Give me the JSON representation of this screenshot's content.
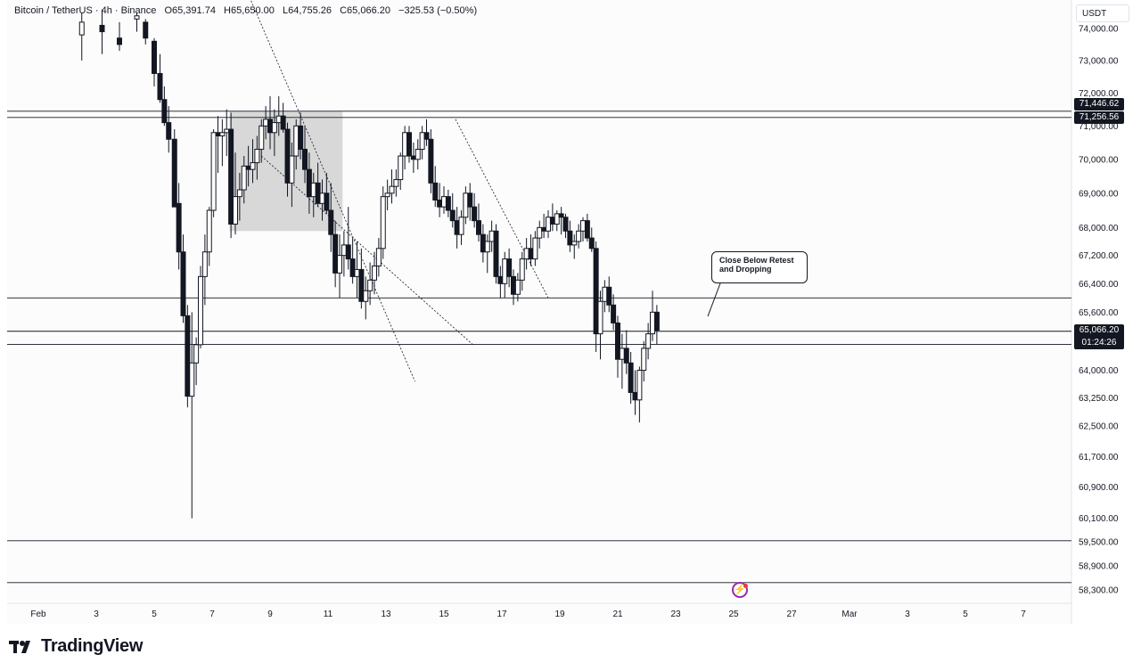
{
  "header": {
    "symbol": "Bitcoin / TetherUS · 4h · Binance",
    "open": "O65,391.74",
    "high": "H65,650.00",
    "low": "L64,755.26",
    "close": "C65,066.20",
    "change": "−325.53 (−0.50%)"
  },
  "currency": "USDT",
  "price_tags": {
    "upper": "71,446.62",
    "lower": "71,256.56",
    "current": "65,066.20",
    "countdown": "01:24:26"
  },
  "annotation": {
    "line1": "Close Below Retest",
    "line2": "and Dropping"
  },
  "branding": "TradingView",
  "colors": {
    "candle": "#131722",
    "hline": "#131722",
    "box_fill": "#d1d1d1",
    "tag_bg": "#131722",
    "bolt": "#9c27b0"
  },
  "chart_data": {
    "type": "candlestick",
    "title": "Bitcoin / TetherUS · 4h · Binance",
    "y_axis": {
      "scale": "log",
      "ticks": [
        "74,000.00",
        "73,000.00",
        "72,000.00",
        "71,000.00",
        "70,000.00",
        "69,000.00",
        "68,000.00",
        "67,200.00",
        "66,400.00",
        "65,600.00",
        "64,000.00",
        "63,250.00",
        "62,500.00",
        "61,700.00",
        "60,900.00",
        "60,100.00",
        "59,500.00",
        "58,900.00",
        "58,300.00"
      ],
      "tick_values": [
        74000,
        73000,
        72000,
        71000,
        70000,
        69000,
        68000,
        67200,
        66400,
        65600,
        64000,
        63250,
        62500,
        61700,
        60900,
        60100,
        59500,
        58900,
        58300
      ]
    },
    "x_axis": {
      "ticks": [
        "Feb",
        "3",
        "5",
        "7",
        "9",
        "11",
        "13",
        "15",
        "17",
        "19",
        "21",
        "23",
        "25",
        "27",
        "Mar",
        "3",
        "5",
        "7"
      ],
      "tick_positions_day": [
        1,
        3,
        5,
        7,
        9,
        11,
        13,
        15,
        17,
        19,
        21,
        23,
        25,
        27,
        29,
        31,
        33,
        35
      ]
    },
    "horizontal_levels": [
      71446.62,
      71256.56,
      66000,
      65070,
      64710,
      59530,
      58480
    ],
    "range_box": {
      "day_start": 7.6,
      "day_end": 11.5,
      "high": 71450,
      "low": 67900
    },
    "trendlines": [
      {
        "from": [
          8.1,
          75400
        ],
        "to": [
          14.0,
          63700
        ]
      },
      {
        "from": [
          8.7,
          70100
        ],
        "to": [
          16.0,
          64700
        ]
      },
      {
        "from": [
          15.4,
          71200
        ],
        "to": [
          18.6,
          66000
        ]
      }
    ],
    "candles_day_ohlc": [
      [
        2.5,
        73800,
        74500,
        73000,
        74200
      ],
      [
        3.2,
        74100,
        74600,
        73200,
        73900
      ],
      [
        3.8,
        73700,
        74200,
        73300,
        73500
      ],
      [
        4.4,
        74300,
        74500,
        73900,
        74400
      ],
      [
        4.7,
        74200,
        74300,
        73500,
        73700
      ],
      [
        5.0,
        73600,
        73700,
        72200,
        72600
      ],
      [
        5.2,
        72600,
        73200,
        71700,
        71800
      ],
      [
        5.35,
        71800,
        72200,
        71000,
        71100
      ],
      [
        5.5,
        71100,
        71600,
        70200,
        70600
      ],
      [
        5.7,
        70600,
        70900,
        68600,
        68600
      ],
      [
        5.85,
        68700,
        69300,
        66800,
        67300
      ],
      [
        6.0,
        67300,
        67800,
        65300,
        65500
      ],
      [
        6.15,
        65500,
        65800,
        63000,
        63300
      ],
      [
        6.3,
        63300,
        65600,
        60100,
        64200
      ],
      [
        6.45,
        64200,
        64900,
        63600,
        64700
      ],
      [
        6.6,
        64700,
        66900,
        64600,
        66600
      ],
      [
        6.75,
        66600,
        67800,
        65800,
        67300
      ],
      [
        6.9,
        67300,
        68600,
        66900,
        68500
      ],
      [
        7.05,
        68500,
        70900,
        68300,
        70800
      ],
      [
        7.2,
        70800,
        71300,
        69600,
        70700
      ],
      [
        7.35,
        70700,
        71200,
        69800,
        70800
      ],
      [
        7.5,
        70800,
        71500,
        70100,
        70900
      ],
      [
        7.65,
        70900,
        71400,
        67700,
        68100
      ],
      [
        7.8,
        68100,
        70200,
        67800,
        68900
      ],
      [
        7.95,
        68900,
        69600,
        68200,
        69100
      ],
      [
        8.1,
        69100,
        70100,
        68700,
        69800
      ],
      [
        8.25,
        69800,
        70400,
        69200,
        69700
      ],
      [
        8.4,
        69700,
        70600,
        69300,
        69900
      ],
      [
        8.55,
        69900,
        70700,
        69400,
        70300
      ],
      [
        8.7,
        70300,
        71200,
        69900,
        71000
      ],
      [
        8.85,
        71000,
        71600,
        70600,
        71200
      ],
      [
        9.0,
        71200,
        71900,
        70300,
        70800
      ],
      [
        9.15,
        70800,
        71500,
        70100,
        71100
      ],
      [
        9.3,
        71100,
        71900,
        70700,
        71300
      ],
      [
        9.45,
        71300,
        71700,
        70800,
        70900
      ],
      [
        9.6,
        70900,
        71100,
        68900,
        69300
      ],
      [
        9.75,
        69300,
        70500,
        68600,
        70100
      ],
      [
        9.9,
        70100,
        71200,
        69700,
        71000
      ],
      [
        10.05,
        71000,
        71400,
        70000,
        70300
      ],
      [
        10.2,
        70300,
        71000,
        69300,
        69700
      ],
      [
        10.35,
        69700,
        70200,
        68400,
        68900
      ],
      [
        10.5,
        68900,
        69600,
        68300,
        69300
      ],
      [
        10.65,
        69300,
        69900,
        68600,
        68700
      ],
      [
        10.8,
        68700,
        69400,
        68200,
        69000
      ],
      [
        10.95,
        69000,
        69600,
        68400,
        68500
      ],
      [
        11.1,
        68500,
        69300,
        67300,
        67800
      ],
      [
        11.25,
        67800,
        68200,
        66300,
        66700
      ],
      [
        11.4,
        66700,
        67800,
        66000,
        67200
      ],
      [
        11.55,
        67200,
        67900,
        66600,
        67500
      ],
      [
        11.7,
        67500,
        68600,
        66800,
        67100
      ],
      [
        11.85,
        67100,
        67700,
        66400,
        66600
      ],
      [
        12.0,
        66600,
        67600,
        66000,
        66800
      ],
      [
        12.15,
        66800,
        67400,
        65700,
        65900
      ],
      [
        12.3,
        65900,
        66600,
        65400,
        66200
      ],
      [
        12.45,
        66200,
        67000,
        65800,
        66500
      ],
      [
        12.6,
        66500,
        67300,
        66100,
        66900
      ],
      [
        12.75,
        66900,
        67700,
        66600,
        67400
      ],
      [
        12.9,
        67400,
        69200,
        67100,
        68900
      ],
      [
        13.05,
        68900,
        69400,
        68500,
        69000
      ],
      [
        13.2,
        69000,
        69700,
        68700,
        69200
      ],
      [
        13.35,
        69200,
        69700,
        68900,
        69400
      ],
      [
        13.5,
        69400,
        70200,
        69100,
        70100
      ],
      [
        13.65,
        70100,
        71000,
        69700,
        70800
      ],
      [
        13.8,
        70800,
        71000,
        69900,
        70100
      ],
      [
        13.95,
        70100,
        70500,
        69600,
        70000
      ],
      [
        14.1,
        70000,
        70600,
        69700,
        70300
      ],
      [
        14.25,
        70300,
        71000,
        70000,
        70800
      ],
      [
        14.4,
        70800,
        71200,
        70400,
        70600
      ],
      [
        14.55,
        70600,
        70900,
        69000,
        69300
      ],
      [
        14.7,
        69300,
        69800,
        68600,
        68800
      ],
      [
        14.85,
        68800,
        69300,
        68300,
        68600
      ],
      [
        15.0,
        68600,
        69200,
        68400,
        68900
      ],
      [
        15.15,
        68900,
        69100,
        68300,
        68500
      ],
      [
        15.3,
        68500,
        69000,
        68000,
        68200
      ],
      [
        15.45,
        68200,
        68600,
        67400,
        67800
      ],
      [
        15.6,
        67800,
        68500,
        67500,
        68300
      ],
      [
        15.75,
        68300,
        69200,
        68100,
        69000
      ],
      [
        15.9,
        69000,
        69300,
        68200,
        68600
      ],
      [
        16.05,
        68600,
        69000,
        68000,
        68200
      ],
      [
        16.2,
        68200,
        68700,
        67600,
        67800
      ],
      [
        16.35,
        67800,
        68100,
        67000,
        67300
      ],
      [
        16.5,
        67300,
        67800,
        66700,
        67600
      ],
      [
        16.65,
        67600,
        68200,
        67300,
        67900
      ],
      [
        16.8,
        67900,
        68100,
        66400,
        66600
      ],
      [
        16.95,
        66600,
        66900,
        66000,
        66400
      ],
      [
        17.1,
        66400,
        67300,
        66000,
        67100
      ],
      [
        17.25,
        67100,
        67400,
        66300,
        66600
      ],
      [
        17.4,
        66600,
        66800,
        65800,
        66100
      ],
      [
        17.55,
        66100,
        66700,
        65900,
        66500
      ],
      [
        17.7,
        66500,
        67300,
        66200,
        67100
      ],
      [
        17.85,
        67100,
        67700,
        66800,
        67400
      ],
      [
        18.0,
        67400,
        67800,
        66900,
        67100
      ],
      [
        18.15,
        67100,
        67900,
        66900,
        67700
      ],
      [
        18.3,
        67700,
        68200,
        67400,
        68000
      ],
      [
        18.45,
        68000,
        68400,
        67700,
        67900
      ],
      [
        18.6,
        67900,
        68500,
        67700,
        68300
      ],
      [
        18.75,
        68300,
        68700,
        67900,
        68100
      ],
      [
        18.9,
        68100,
        68500,
        67900,
        68400
      ],
      [
        19.05,
        68400,
        68600,
        67800,
        68300
      ],
      [
        19.2,
        68300,
        68400,
        67700,
        67900
      ],
      [
        19.35,
        67900,
        68200,
        67300,
        67500
      ],
      [
        19.5,
        67500,
        67800,
        67100,
        67600
      ],
      [
        19.65,
        67600,
        68100,
        67400,
        67900
      ],
      [
        19.8,
        67900,
        68300,
        67600,
        68200
      ],
      [
        19.95,
        68200,
        68400,
        67600,
        67700
      ],
      [
        20.1,
        67700,
        68000,
        67300,
        67400
      ],
      [
        20.25,
        67400,
        67600,
        64500,
        65000
      ],
      [
        20.4,
        65000,
        66200,
        64300,
        65900
      ],
      [
        20.55,
        65900,
        66500,
        65600,
        66300
      ],
      [
        20.7,
        66300,
        66600,
        65600,
        65800
      ],
      [
        20.85,
        65800,
        66100,
        65100,
        65300
      ],
      [
        21.0,
        65300,
        65500,
        63800,
        64300
      ],
      [
        21.15,
        64300,
        65000,
        63500,
        64600
      ],
      [
        21.3,
        64600,
        65100,
        63900,
        64200
      ],
      [
        21.45,
        64200,
        64500,
        63100,
        63400
      ],
      [
        21.6,
        63400,
        64000,
        62800,
        63200
      ],
      [
        21.75,
        63200,
        64100,
        62600,
        64000
      ],
      [
        21.9,
        64000,
        64800,
        63700,
        64600
      ],
      [
        22.05,
        64600,
        65300,
        64300,
        65000
      ],
      [
        22.2,
        65000,
        66200,
        64800,
        65600
      ],
      [
        22.35,
        65600,
        65800,
        64700,
        65100
      ]
    ]
  }
}
